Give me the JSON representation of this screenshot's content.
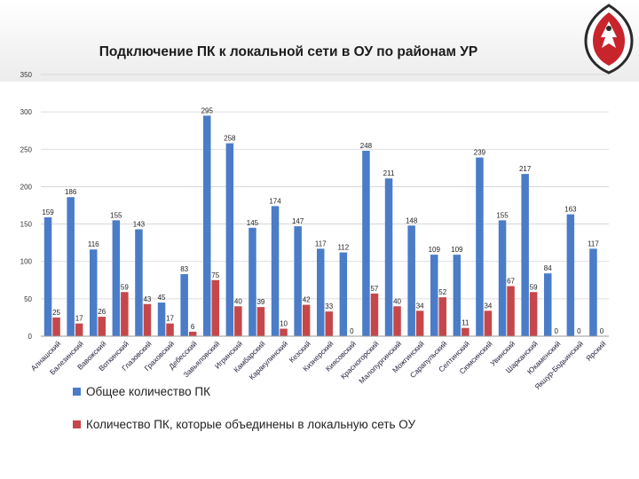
{
  "title": "Подключение ПК к локальной сети в ОУ по районам УР",
  "colors": {
    "series_total": "#4a7cc8",
    "series_connected": "#c6474a",
    "grid": "#d2d2d2",
    "axis": "#9a9a9a"
  },
  "chart_data": {
    "type": "bar",
    "title": "Подключение ПК к локальной сети в ОУ по районам УР",
    "xlabel": "",
    "ylabel": "",
    "ylim": [
      0,
      350
    ],
    "yticks": [
      0,
      50,
      100,
      150,
      200,
      250,
      300,
      350
    ],
    "grid": true,
    "legend_position": "bottom-left",
    "categories": [
      "Алнашский",
      "Балезинский",
      "Вавожский",
      "Воткинский",
      "Глазовский",
      "Граховский",
      "Дебесский",
      "Завьяловский",
      "Игринский",
      "Камбарский",
      "Каракулинский",
      "Кезский",
      "Кизнерский",
      "Киясовский",
      "Красногорский",
      "Малопургинский",
      "Можгинский",
      "Сарапульский",
      "Селтинский",
      "Сюмсинский",
      "Увинский",
      "Шарканский",
      "Юкаменский",
      "Якшур-Бодьинский",
      "Ярский"
    ],
    "series": [
      {
        "name": "Общее количество ПК",
        "values": [
          159,
          186,
          116,
          155,
          143,
          45,
          83,
          295,
          258,
          145,
          174,
          147,
          117,
          112,
          248,
          211,
          148,
          109,
          109,
          239,
          155,
          217,
          84,
          163,
          117
        ]
      },
      {
        "name": "Количество ПК, которые объединены в локальную сеть ОУ",
        "values": [
          25,
          17,
          26,
          59,
          43,
          17,
          6,
          75,
          40,
          39,
          10,
          42,
          33,
          0,
          57,
          40,
          34,
          52,
          11,
          34,
          67,
          59,
          0,
          0,
          0
        ]
      }
    ]
  }
}
